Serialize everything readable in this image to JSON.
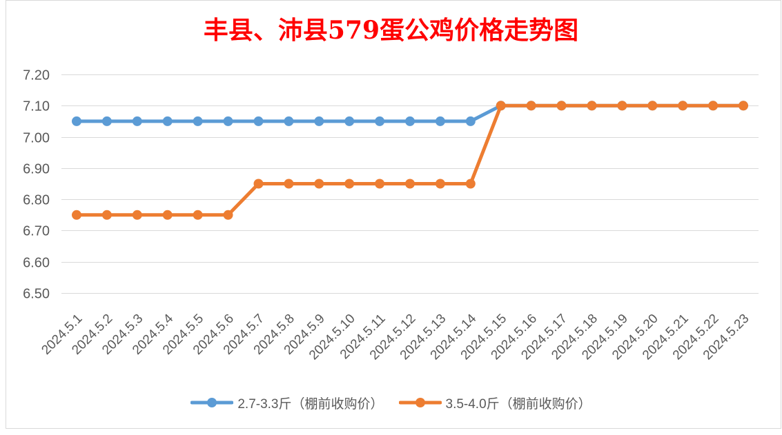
{
  "chart_data": {
    "type": "line",
    "title": "丰县、沛县579蛋公鸡价格走势图",
    "title_color": "#FF0000",
    "categories": [
      "2024.5.1",
      "2024.5.2",
      "2024.5.3",
      "2024.5.4",
      "2024.5.5",
      "2024.5.6",
      "2024.5.7",
      "2024.5.8",
      "2024.5.9",
      "2024.5.10",
      "2024.5.11",
      "2024.5.12",
      "2024.5.13",
      "2024.5.14",
      "2024.5.15",
      "2024.5.16",
      "2024.5.17",
      "2024.5.18",
      "2024.5.19",
      "2024.5.20",
      "2024.5.21",
      "2024.5.22",
      "2024.5.23"
    ],
    "series": [
      {
        "name": "2.7-3.3斤（棚前收购价）",
        "color": "#5B9BD5",
        "values": [
          7.05,
          7.05,
          7.05,
          7.05,
          7.05,
          7.05,
          7.05,
          7.05,
          7.05,
          7.05,
          7.05,
          7.05,
          7.05,
          7.05,
          7.1,
          7.1,
          7.1,
          7.1,
          7.1,
          7.1,
          7.1,
          7.1,
          7.1
        ]
      },
      {
        "name": "3.5-4.0斤（棚前收购价）",
        "color": "#ED7D31",
        "values": [
          6.75,
          6.75,
          6.75,
          6.75,
          6.75,
          6.75,
          6.85,
          6.85,
          6.85,
          6.85,
          6.85,
          6.85,
          6.85,
          6.85,
          7.1,
          7.1,
          7.1,
          7.1,
          7.1,
          7.1,
          7.1,
          7.1,
          7.1
        ]
      }
    ],
    "ylim": [
      6.5,
      7.2
    ],
    "ytick_labels": [
      "6.50",
      "6.60",
      "6.70",
      "6.80",
      "6.90",
      "7.00",
      "7.10",
      "7.20"
    ],
    "grid": true,
    "legend_position": "bottom"
  }
}
